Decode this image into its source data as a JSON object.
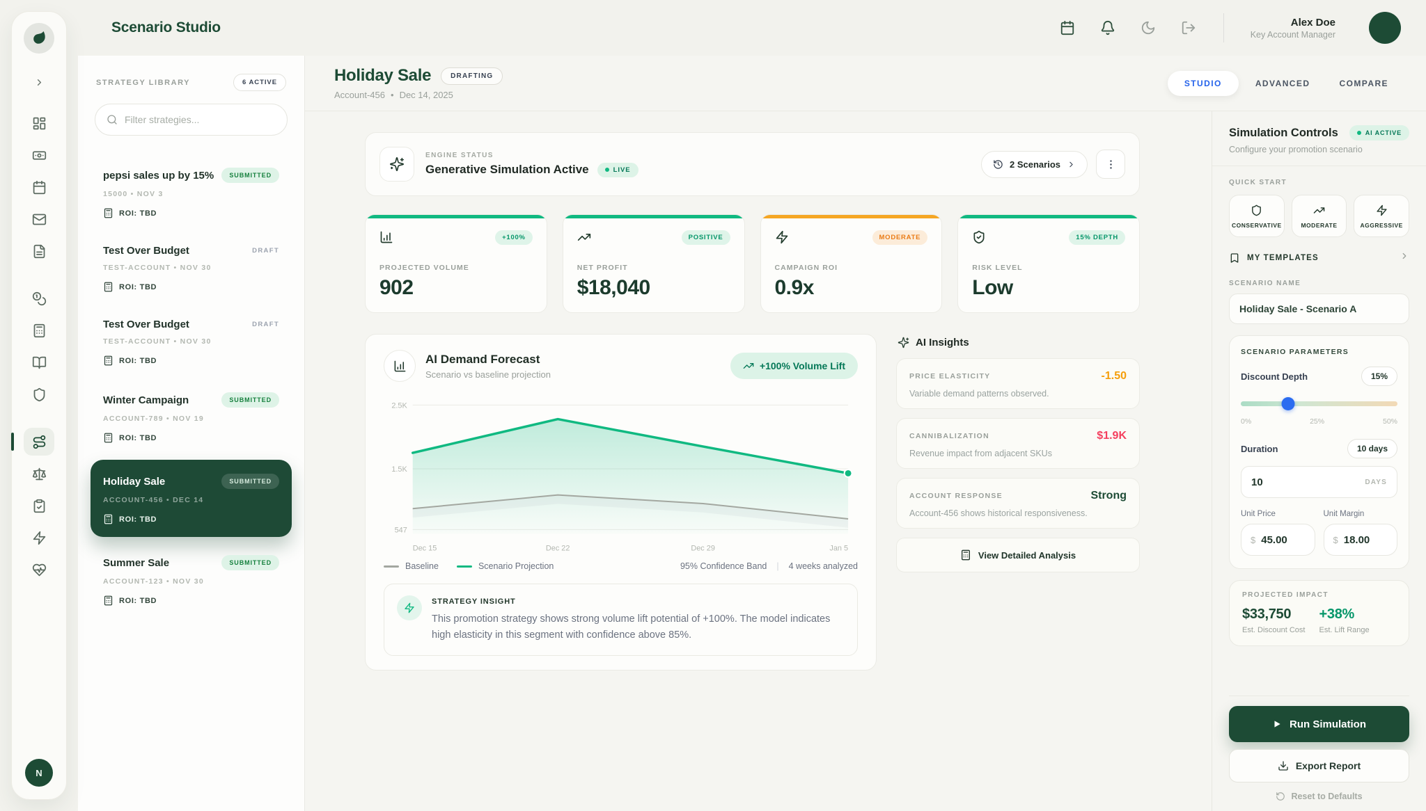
{
  "app": {
    "title": "Scenario Studio"
  },
  "topbar": {
    "user": {
      "name": "Alex Doe",
      "role": "Key Account Manager"
    }
  },
  "rail": {
    "footer_initial": "N"
  },
  "library": {
    "title": "STRATEGY LIBRARY",
    "active_badge": "6 ACTIVE",
    "filter_placeholder": "Filter strategies...",
    "items": [
      {
        "name": "pepsi sales up by 15%",
        "status": "SUBMITTED",
        "meta": "15000 • NOV 3",
        "roi": "ROI: TBD",
        "selected": false
      },
      {
        "name": "Test Over Budget",
        "status": "DRAFT",
        "meta": "TEST-ACCOUNT • NOV 30",
        "roi": "ROI: TBD",
        "selected": false
      },
      {
        "name": "Test Over Budget",
        "status": "DRAFT",
        "meta": "TEST-ACCOUNT • NOV 30",
        "roi": "ROI: TBD",
        "selected": false
      },
      {
        "name": "Winter Campaign",
        "status": "SUBMITTED",
        "meta": "ACCOUNT-789 • NOV 19",
        "roi": "ROI: TBD",
        "selected": false
      },
      {
        "name": "Holiday Sale",
        "status": "SUBMITTED",
        "meta": "ACCOUNT-456 • DEC 14",
        "roi": "ROI: TBD",
        "selected": true
      },
      {
        "name": "Summer Sale",
        "status": "SUBMITTED",
        "meta": "ACCOUNT-123 • NOV 30",
        "roi": "ROI: TBD",
        "selected": false
      }
    ]
  },
  "header": {
    "title": "Holiday Sale",
    "status_badge": "DRAFTING",
    "account": "Account-456",
    "separator": "•",
    "date": "Dec 14, 2025",
    "tabs": [
      {
        "label": "STUDIO",
        "active": true
      },
      {
        "label": "ADVANCED",
        "active": false
      },
      {
        "label": "COMPARE",
        "active": false
      }
    ]
  },
  "engine": {
    "label": "ENGINE STATUS",
    "title": "Generative Simulation Active",
    "live_badge": "LIVE",
    "scenarios_button": "2 Scenarios"
  },
  "kpis": [
    {
      "label": "PROJECTED VOLUME",
      "value": "902",
      "badge": "+100%",
      "accent": "#10b981",
      "icon": "bar-chart-icon"
    },
    {
      "label": "NET PROFIT",
      "value": "$18,040",
      "badge": "POSITIVE",
      "accent": "#10b981",
      "icon": "trending-up-icon"
    },
    {
      "label": "CAMPAIGN ROI",
      "value": "0.9x",
      "badge": "MODERATE",
      "accent": "#f5a623",
      "icon": "zap-icon"
    },
    {
      "label": "RISK LEVEL",
      "value": "Low",
      "badge": "15% DEPTH",
      "accent": "#10b981",
      "icon": "shield-check-icon"
    }
  ],
  "forecast": {
    "title": "AI Demand Forecast",
    "subtitle": "Scenario vs baseline projection",
    "lift_badge": "+100% Volume Lift",
    "legend": [
      {
        "label": "Baseline",
        "color": "#a3a7a0"
      },
      {
        "label": "Scenario Projection",
        "color": "#10b981"
      }
    ],
    "confidence_note": "95% Confidence Band",
    "analyzed_note": "4 weeks analyzed"
  },
  "chart_data": {
    "type": "area",
    "x": [
      "Dec 15",
      "Dec 22",
      "Dec 29",
      "Jan 5"
    ],
    "series": [
      {
        "name": "Scenario Projection",
        "color": "#10b981",
        "values": [
          1750,
          2280,
          1850,
          1430
        ]
      },
      {
        "name": "Baseline",
        "color": "#a3a7a0",
        "values": [
          875,
          1090,
          955,
          715
        ]
      }
    ],
    "y_ticks": [
      {
        "label": "2.5K",
        "value": 2500
      },
      {
        "label": "1.5K",
        "value": 1500
      },
      {
        "label": "547",
        "value": 547
      }
    ],
    "ylim": [
      480,
      2560
    ],
    "grid": true,
    "legend_position": "bottom"
  },
  "insight": {
    "label": "STRATEGY INSIGHT",
    "text": "This promotion strategy shows strong volume lift potential of +100%. The model indicates high elasticity in this segment with confidence above 85%."
  },
  "ai_insights": {
    "title": "AI Insights",
    "cards": [
      {
        "label": "PRICE ELASTICITY",
        "value": "-1.50",
        "value_color": "#f59e0b",
        "desc": "Variable demand patterns observed."
      },
      {
        "label": "CANNIBALIZATION",
        "value": "$1.9K",
        "value_color": "#f43f5e",
        "desc": "Revenue impact from adjacent SKUs"
      },
      {
        "label": "ACCOUNT RESPONSE",
        "value": "Strong",
        "value_color": "#1d4b35",
        "desc": "Account-456 shows historical responsiveness."
      }
    ],
    "button": "View Detailed Analysis"
  },
  "controls": {
    "title": "Simulation Controls",
    "ai_badge": "AI ACTIVE",
    "subtitle": "Configure your promotion scenario",
    "quick_start_label": "QUICK START",
    "presets": [
      {
        "label": "CONSERVATIVE"
      },
      {
        "label": "MODERATE"
      },
      {
        "label": "AGGRESSIVE"
      }
    ],
    "templates_label": "MY TEMPLATES",
    "scenario_name_label": "SCENARIO NAME",
    "scenario_name_value": "Holiday Sale - Scenario A",
    "parameters_label": "SCENARIO PARAMETERS",
    "discount": {
      "label": "Discount Depth",
      "value": "15%",
      "min": "0%",
      "mid": "25%",
      "max": "50%",
      "percent": 30
    },
    "duration": {
      "label": "Duration",
      "value_badge": "10 days",
      "input_value": "10",
      "suffix": "DAYS"
    },
    "unit_price": {
      "label": "Unit Price",
      "prefix": "$",
      "value": "45.00"
    },
    "unit_margin": {
      "label": "Unit Margin",
      "prefix": "$",
      "value": "18.00"
    },
    "impact": {
      "label": "PROJECTED IMPACT",
      "cost_value": "$33,750",
      "cost_label": "Est. Discount Cost",
      "lift_value": "+38%",
      "lift_label": "Est. Lift Range"
    },
    "run_button": "Run Simulation",
    "export_button": "Export Report",
    "reset_button": "Reset to Defaults"
  }
}
